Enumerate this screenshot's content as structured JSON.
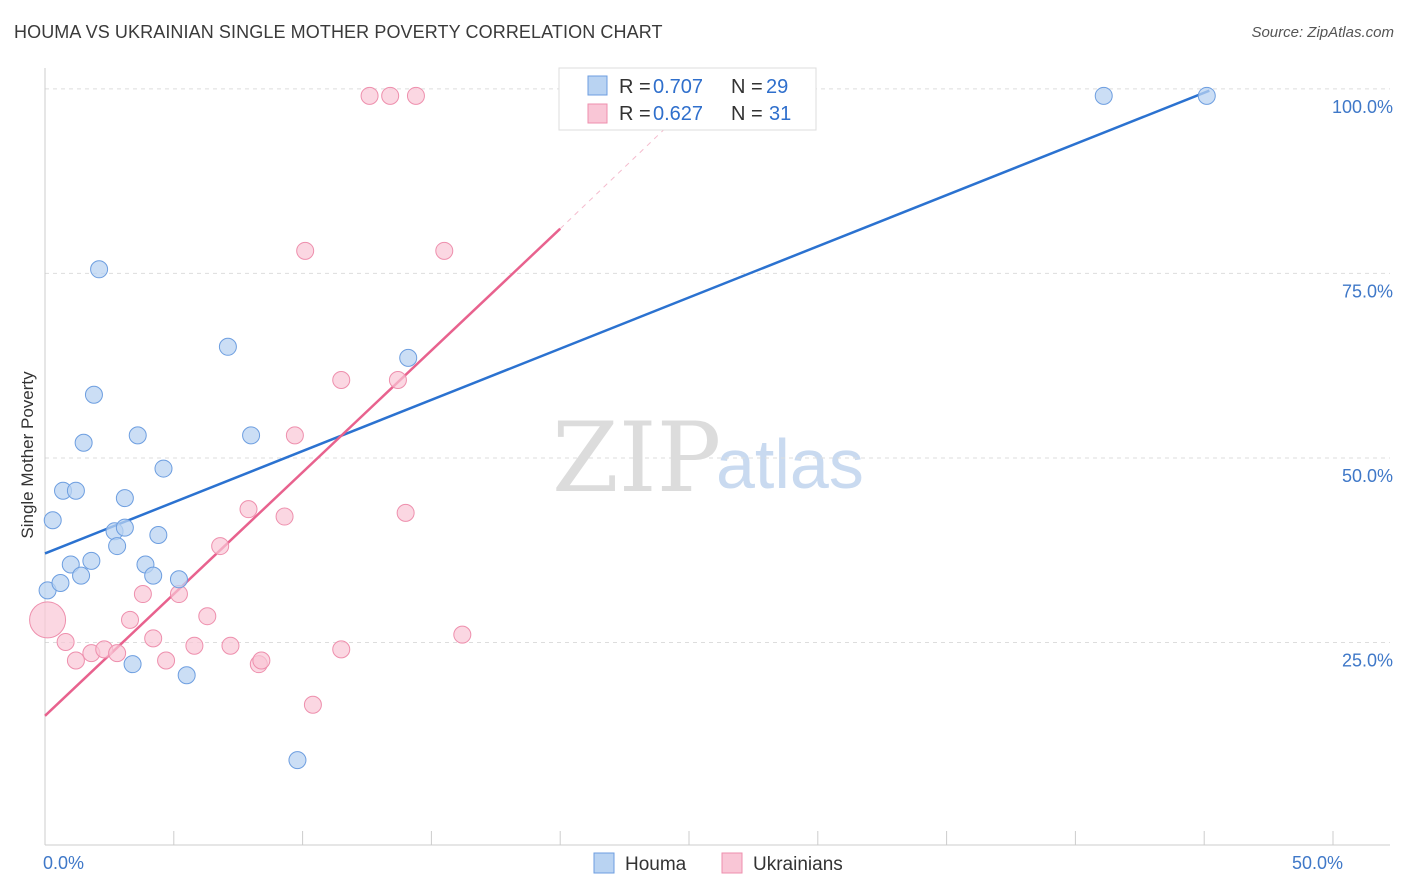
{
  "title": "HOUMA VS UKRAINIAN SINGLE MOTHER POVERTY CORRELATION CHART",
  "source": "Source: ZipAtlas.com",
  "watermark": {
    "zip": "ZIP",
    "atlas": "atlas"
  },
  "colors": {
    "houma_fill": "#b9d3f2",
    "houma_stroke": "#6d9ee0",
    "houma_line": "#2b72d0",
    "ukr_fill": "#f9c6d6",
    "ukr_stroke": "#ee8fad",
    "ukr_line": "#e8628e",
    "tick_text": "#3f78c8",
    "grid": "#dddddd"
  },
  "legend": {
    "houma": {
      "r_label": "R = ",
      "r_value": "0.707",
      "n_label": "N = ",
      "n_value": "29"
    },
    "ukrainians": {
      "r_label": "R = ",
      "r_value": "0.627",
      "n_label": "N = ",
      "n_value": "31"
    }
  },
  "chart_data": {
    "type": "scatter",
    "xlabel": "",
    "ylabel": "Single Mother Poverty",
    "xlim": [
      0,
      50
    ],
    "ylim": [
      0,
      105
    ],
    "x_tick_labels": [
      {
        "value": 0,
        "label": "0.0%"
      },
      {
        "value": 50,
        "label": "50.0%"
      }
    ],
    "y_tick_labels": [
      {
        "value": 25,
        "label": "25.0%"
      },
      {
        "value": 50,
        "label": "50.0%"
      },
      {
        "value": 75,
        "label": "75.0%"
      },
      {
        "value": 100,
        "label": "100.0%"
      }
    ],
    "grid": "horizontal dashed",
    "legend_position": "top-center",
    "series": [
      {
        "name": "Houma",
        "color": "#6d9ee0",
        "trend": {
          "x": [
            0,
            45.2
          ],
          "y": [
            39.5,
            102.2
          ]
        },
        "points": [
          {
            "x": 0.1,
            "y": 34.5
          },
          {
            "x": 0.3,
            "y": 44.0
          },
          {
            "x": 0.6,
            "y": 35.5
          },
          {
            "x": 0.7,
            "y": 48.0
          },
          {
            "x": 1.0,
            "y": 38.0
          },
          {
            "x": 1.2,
            "y": 48.0
          },
          {
            "x": 1.4,
            "y": 36.5
          },
          {
            "x": 1.5,
            "y": 54.5
          },
          {
            "x": 1.8,
            "y": 38.5
          },
          {
            "x": 1.9,
            "y": 61.0
          },
          {
            "x": 2.1,
            "y": 78.0
          },
          {
            "x": 2.7,
            "y": 42.5
          },
          {
            "x": 2.8,
            "y": 40.5
          },
          {
            "x": 3.1,
            "y": 43.0
          },
          {
            "x": 3.1,
            "y": 47.0
          },
          {
            "x": 3.4,
            "y": 24.5
          },
          {
            "x": 3.6,
            "y": 55.5
          },
          {
            "x": 3.9,
            "y": 38.0
          },
          {
            "x": 4.2,
            "y": 36.5
          },
          {
            "x": 4.4,
            "y": 42.0
          },
          {
            "x": 4.6,
            "y": 51.0
          },
          {
            "x": 5.2,
            "y": 36.0
          },
          {
            "x": 5.5,
            "y": 23.0
          },
          {
            "x": 7.1,
            "y": 67.5
          },
          {
            "x": 8.0,
            "y": 55.5
          },
          {
            "x": 9.8,
            "y": 11.5
          },
          {
            "x": 14.1,
            "y": 66.0
          },
          {
            "x": 41.1,
            "y": 101.5
          },
          {
            "x": 45.1,
            "y": 101.5
          }
        ]
      },
      {
        "name": "Ukrainians",
        "color": "#ee8fad",
        "trend": {
          "x": [
            0,
            20.0
          ],
          "y": [
            17.5,
            83.5
          ]
        },
        "trend_ext": {
          "x": [
            20.0,
            24.2
          ],
          "y": [
            83.5,
            97.5
          ]
        },
        "points": [
          {
            "x": 0.1,
            "y": 30.5,
            "size": "large"
          },
          {
            "x": 0.8,
            "y": 27.5
          },
          {
            "x": 1.2,
            "y": 25.0
          },
          {
            "x": 1.8,
            "y": 26.0
          },
          {
            "x": 2.3,
            "y": 26.5
          },
          {
            "x": 2.8,
            "y": 26.0
          },
          {
            "x": 3.3,
            "y": 30.5
          },
          {
            "x": 3.8,
            "y": 34.0
          },
          {
            "x": 4.2,
            "y": 28.0
          },
          {
            "x": 4.7,
            "y": 25.0
          },
          {
            "x": 5.2,
            "y": 34.0
          },
          {
            "x": 5.8,
            "y": 27.0
          },
          {
            "x": 6.3,
            "y": 31.0
          },
          {
            "x": 6.8,
            "y": 40.5
          },
          {
            "x": 7.2,
            "y": 27.0
          },
          {
            "x": 7.9,
            "y": 45.5
          },
          {
            "x": 8.3,
            "y": 24.5
          },
          {
            "x": 8.4,
            "y": 25.0
          },
          {
            "x": 9.3,
            "y": 44.5
          },
          {
            "x": 9.7,
            "y": 55.5
          },
          {
            "x": 10.1,
            "y": 80.5
          },
          {
            "x": 10.4,
            "y": 19.0
          },
          {
            "x": 11.5,
            "y": 26.5
          },
          {
            "x": 11.5,
            "y": 63.0
          },
          {
            "x": 12.6,
            "y": 101.5
          },
          {
            "x": 13.4,
            "y": 101.5
          },
          {
            "x": 13.7,
            "y": 63.0
          },
          {
            "x": 14.0,
            "y": 45.0
          },
          {
            "x": 14.4,
            "y": 101.5
          },
          {
            "x": 15.5,
            "y": 80.5
          },
          {
            "x": 16.2,
            "y": 28.5
          }
        ]
      }
    ]
  },
  "bottom_legend": {
    "houma_label": "Houma",
    "ukr_label": "Ukrainians"
  }
}
